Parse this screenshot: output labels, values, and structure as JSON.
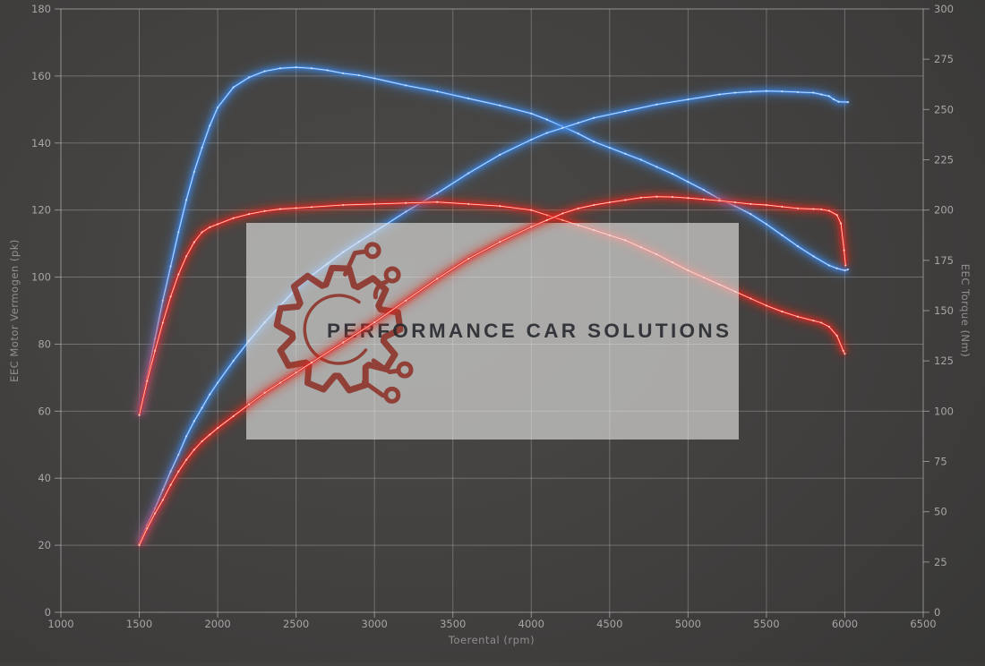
{
  "chart_data": {
    "type": "line",
    "title": "",
    "legend": "none",
    "grid": true,
    "x_axis": {
      "label": "Toerental (rpm)",
      "min": 1000,
      "max": 6500,
      "tick_step": 500,
      "tick_labels": [
        "1000",
        "1500",
        "2000",
        "2500",
        "3000",
        "3500",
        "4000",
        "4500",
        "5000",
        "5500",
        "6000",
        "6500"
      ]
    },
    "y_left": {
      "label": "EEC Motor Vermogen (pk)",
      "min": 0,
      "max": 180,
      "tick_step": 20,
      "tick_labels": [
        "0",
        "20",
        "40",
        "60",
        "80",
        "100",
        "120",
        "140",
        "160",
        "180"
      ]
    },
    "y_right": {
      "label": "EEC Torque (Nm)",
      "min": 0,
      "max": 300,
      "tick_step": 25,
      "tick_labels": [
        "0",
        "25",
        "50",
        "75",
        "100",
        "125",
        "150",
        "175",
        "200",
        "225",
        "250",
        "275",
        "300"
      ]
    },
    "watermark": {
      "text": "PERFORMANCE CAR SOLUTIONS"
    },
    "colors": {
      "blue": "#3d89e8",
      "blue_core": "#cfe4ff",
      "red": "#e3241a",
      "red_core": "#ffd3cc",
      "grid": "#d0d0d0",
      "axis": "#c8c8c8",
      "tick_text": "#a6a6a6",
      "axis_title": "#8f8f8f",
      "watermark_bg": "#e9e9e7",
      "watermark_logo": "#8c2e24",
      "watermark_text": "#23262b"
    },
    "series": [
      {
        "id": "blue-torque",
        "color": "blue",
        "axis": "right",
        "unit": "Nm",
        "layer": "under",
        "points": [
          [
            1500,
            98
          ],
          [
            1550,
            117
          ],
          [
            1600,
            136
          ],
          [
            1650,
            155
          ],
          [
            1700,
            172
          ],
          [
            1750,
            189
          ],
          [
            1800,
            205
          ],
          [
            1850,
            219
          ],
          [
            1900,
            231
          ],
          [
            1950,
            242
          ],
          [
            2000,
            251
          ],
          [
            2100,
            261
          ],
          [
            2200,
            266
          ],
          [
            2300,
            269
          ],
          [
            2400,
            270.5
          ],
          [
            2500,
            271
          ],
          [
            2600,
            270.5
          ],
          [
            2700,
            269.5
          ],
          [
            2800,
            268
          ],
          [
            2900,
            267
          ],
          [
            3000,
            265.5
          ],
          [
            3200,
            262
          ],
          [
            3400,
            259
          ],
          [
            3600,
            255.5
          ],
          [
            3800,
            252
          ],
          [
            4000,
            248
          ],
          [
            4100,
            245
          ],
          [
            4200,
            241.5
          ],
          [
            4300,
            238
          ],
          [
            4400,
            234
          ],
          [
            4500,
            231
          ],
          [
            4600,
            228
          ],
          [
            4700,
            225
          ],
          [
            4800,
            221.5
          ],
          [
            4900,
            218
          ],
          [
            5000,
            214
          ],
          [
            5100,
            210
          ],
          [
            5200,
            205.5
          ],
          [
            5300,
            202
          ],
          [
            5400,
            198
          ],
          [
            5500,
            193
          ],
          [
            5600,
            187.5
          ],
          [
            5700,
            182
          ],
          [
            5800,
            177
          ],
          [
            5900,
            172.5
          ],
          [
            5950,
            171
          ],
          [
            6000,
            170
          ],
          [
            6020,
            170.5
          ]
        ]
      },
      {
        "id": "blue-power",
        "color": "blue",
        "axis": "left",
        "unit": "pk",
        "layer": "under",
        "points": [
          [
            1500,
            20.5
          ],
          [
            1550,
            26
          ],
          [
            1600,
            31
          ],
          [
            1650,
            36.5
          ],
          [
            1700,
            42
          ],
          [
            1750,
            47
          ],
          [
            1800,
            52.5
          ],
          [
            1850,
            57
          ],
          [
            1900,
            61
          ],
          [
            1950,
            65
          ],
          [
            2000,
            68.5
          ],
          [
            2100,
            75
          ],
          [
            2200,
            81
          ],
          [
            2300,
            86.5
          ],
          [
            2400,
            91.5
          ],
          [
            2500,
            96.5
          ],
          [
            2600,
            100.5
          ],
          [
            2700,
            104
          ],
          [
            2800,
            107.5
          ],
          [
            2900,
            110.5
          ],
          [
            3000,
            113.5
          ],
          [
            3200,
            119.5
          ],
          [
            3400,
            125
          ],
          [
            3600,
            131
          ],
          [
            3800,
            136.5
          ],
          [
            4000,
            141
          ],
          [
            4100,
            143
          ],
          [
            4200,
            144.5
          ],
          [
            4300,
            146
          ],
          [
            4400,
            147.5
          ],
          [
            4600,
            149.5
          ],
          [
            4800,
            151.5
          ],
          [
            5000,
            153
          ],
          [
            5200,
            154.5
          ],
          [
            5300,
            155
          ],
          [
            5400,
            155.3
          ],
          [
            5500,
            155.5
          ],
          [
            5600,
            155.4
          ],
          [
            5700,
            155.2
          ],
          [
            5800,
            155
          ],
          [
            5850,
            154.5
          ],
          [
            5900,
            154
          ],
          [
            5930,
            153
          ],
          [
            5960,
            152.3
          ],
          [
            6020,
            152.2
          ]
        ]
      },
      {
        "id": "red-torque",
        "color": "red",
        "axis": "right",
        "unit": "Nm",
        "layer": "under",
        "points": [
          [
            1500,
            98
          ],
          [
            1550,
            115
          ],
          [
            1600,
            130
          ],
          [
            1650,
            144
          ],
          [
            1700,
            157
          ],
          [
            1750,
            168
          ],
          [
            1800,
            177
          ],
          [
            1850,
            184
          ],
          [
            1900,
            189
          ],
          [
            1950,
            191.5
          ],
          [
            2000,
            193
          ],
          [
            2100,
            196
          ],
          [
            2200,
            198
          ],
          [
            2300,
            199.5
          ],
          [
            2400,
            200.5
          ],
          [
            2500,
            201
          ],
          [
            2600,
            201.5
          ],
          [
            2800,
            202.5
          ],
          [
            3000,
            203
          ],
          [
            3200,
            203.5
          ],
          [
            3400,
            204
          ],
          [
            3600,
            203
          ],
          [
            3800,
            202
          ],
          [
            4000,
            200
          ],
          [
            4100,
            197.5
          ],
          [
            4200,
            195
          ],
          [
            4300,
            192.5
          ],
          [
            4400,
            190
          ],
          [
            4500,
            187.5
          ],
          [
            4600,
            185
          ],
          [
            4700,
            181.5
          ],
          [
            4800,
            178
          ],
          [
            4900,
            174
          ],
          [
            5000,
            170
          ],
          [
            5100,
            166.5
          ],
          [
            5200,
            163
          ],
          [
            5300,
            159.5
          ],
          [
            5400,
            156
          ],
          [
            5500,
            152.5
          ],
          [
            5600,
            149.5
          ],
          [
            5700,
            147
          ],
          [
            5800,
            145
          ],
          [
            5850,
            144
          ],
          [
            5900,
            142
          ],
          [
            5950,
            137.5
          ],
          [
            5990,
            130
          ],
          [
            6000,
            128.5
          ]
        ]
      },
      {
        "id": "red-power",
        "color": "red",
        "axis": "left",
        "unit": "pk",
        "layer": "over",
        "points": [
          [
            1500,
            20
          ],
          [
            1550,
            25
          ],
          [
            1600,
            29.5
          ],
          [
            1650,
            33.5
          ],
          [
            1700,
            38
          ],
          [
            1750,
            42
          ],
          [
            1800,
            45.5
          ],
          [
            1850,
            48.5
          ],
          [
            1900,
            51
          ],
          [
            1950,
            53
          ],
          [
            2000,
            55
          ],
          [
            2100,
            58.5
          ],
          [
            2200,
            62
          ],
          [
            2300,
            65.5
          ],
          [
            2400,
            68.5
          ],
          [
            2500,
            71.5
          ],
          [
            2600,
            74.5
          ],
          [
            2800,
            80.5
          ],
          [
            3000,
            86.5
          ],
          [
            3200,
            93
          ],
          [
            3400,
            99.5
          ],
          [
            3600,
            105.5
          ],
          [
            3800,
            110.5
          ],
          [
            4000,
            115
          ],
          [
            4100,
            117
          ],
          [
            4200,
            119
          ],
          [
            4300,
            120.5
          ],
          [
            4400,
            121.5
          ],
          [
            4500,
            122.3
          ],
          [
            4600,
            123
          ],
          [
            4700,
            123.7
          ],
          [
            4800,
            124
          ],
          [
            4900,
            123.9
          ],
          [
            5000,
            123.6
          ],
          [
            5100,
            123.2
          ],
          [
            5200,
            122.8
          ],
          [
            5300,
            122.3
          ],
          [
            5400,
            121.8
          ],
          [
            5500,
            121.5
          ],
          [
            5600,
            121
          ],
          [
            5700,
            120.5
          ],
          [
            5800,
            120.3
          ],
          [
            5850,
            120.2
          ],
          [
            5900,
            119.8
          ],
          [
            5950,
            118.5
          ],
          [
            5975,
            116
          ],
          [
            5995,
            108
          ],
          [
            6005,
            103.5
          ]
        ]
      }
    ]
  }
}
